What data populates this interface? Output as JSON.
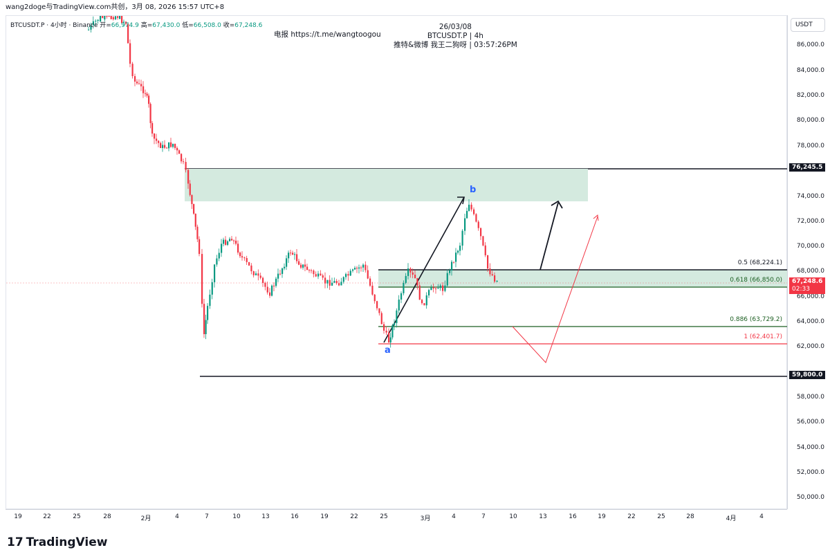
{
  "topbar": {
    "shared_by": "wang2doge与TradingView.com共创，3月 08, 2026 15:57 UTC+8"
  },
  "legend": {
    "symbol": "BTCUSDT.P · 4小时 · Binance",
    "open_label": "开=",
    "open": "66,974.9",
    "high_label": "高=",
    "high": "67,430.0",
    "low_label": "低=",
    "low": "66,508.0",
    "close_label": "收=",
    "close": "67,248.6"
  },
  "info": {
    "telegram": "电报 https://t.me/wangtoogou",
    "date": "26/03/08",
    "symbol_tf": "BTCUSDT.P | 4h",
    "author_time": "推特&微博 我王二狗呀 | 03:57:26PM"
  },
  "price_axis": {
    "currency": "USDT",
    "labels": [
      "86,000.0",
      "84,000.0",
      "82,000.0",
      "80,000.0",
      "78,000.0",
      "74,000.0",
      "72,000.0",
      "70,000.0",
      "68,000.0",
      "66,000.0",
      "64,000.0",
      "62,000.0",
      "58,000.0",
      "56,000.0",
      "54,000.0",
      "52,000.0",
      "50,000.0"
    ],
    "tag_upper": "76,245.5",
    "tag_lower": "59,800.0",
    "tag_current": "67,248.6",
    "tag_countdown": "02:33"
  },
  "time_axis": {
    "ticks": [
      "19",
      "22",
      "25",
      "28",
      "2月",
      "4",
      "7",
      "10",
      "13",
      "16",
      "19",
      "22",
      "25",
      "3月",
      "4",
      "7",
      "10",
      "13",
      "16",
      "19",
      "22",
      "25",
      "28",
      "4月",
      "4"
    ]
  },
  "fib": {
    "f05": "0.5 (68,224.1)",
    "f0618": "0.618 (66,850.0)",
    "f0886": "0.886 (63,729.2)",
    "f1": "1 (62,401.7)"
  },
  "waves": {
    "a": "a",
    "b": "b"
  },
  "colors": {
    "up": "#089981",
    "down": "#f23645",
    "zone_fill": "#d4eadf",
    "fib_green": "#1b5e20",
    "fib_red": "#f23645"
  },
  "footer": {
    "brand": "TradingView"
  }
}
